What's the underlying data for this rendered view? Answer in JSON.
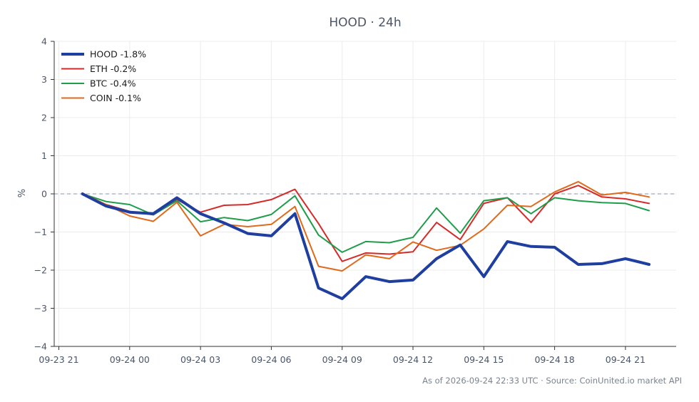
{
  "chart_data": {
    "type": "line",
    "title": "HOOD · 24h",
    "ylabel": "%",
    "xlabel": "",
    "ylim": [
      -4,
      4
    ],
    "yticks": [
      -4,
      -3,
      -2,
      -1,
      0,
      1,
      2,
      3,
      4
    ],
    "ytick_labels": [
      "−4",
      "−3",
      "−2",
      "−1",
      "0",
      "1",
      "2",
      "3",
      "4"
    ],
    "xtick_labels": [
      "09-23 21",
      "09-24 00",
      "09-24 03",
      "09-24 06",
      "09-24 09",
      "09-24 12",
      "09-24 15",
      "09-24 18",
      "09-24 21"
    ],
    "x": [
      "09-23 22",
      "09-23 23",
      "09-24 00",
      "09-24 01",
      "09-24 02",
      "09-24 03",
      "09-24 04",
      "09-24 05",
      "09-24 06",
      "09-24 07",
      "09-24 08",
      "09-24 09",
      "09-24 10",
      "09-24 11",
      "09-24 12",
      "09-24 13",
      "09-24 14",
      "09-24 15",
      "09-24 16",
      "09-24 17",
      "09-24 18",
      "09-24 19",
      "09-24 20",
      "09-24 21",
      "09-24 22"
    ],
    "reference_line": 0,
    "grid": true,
    "legend_position": "top-left",
    "series": [
      {
        "name": "HOOD -1.8%",
        "color": "#1f3fa0",
        "width": 4,
        "values": [
          0.0,
          -0.32,
          -0.48,
          -0.52,
          -0.1,
          -0.52,
          -0.76,
          -1.04,
          -1.1,
          -0.52,
          -2.47,
          -2.75,
          -2.17,
          -2.3,
          -2.26,
          -1.7,
          -1.34,
          -2.17,
          -1.25,
          -1.38,
          -1.4,
          -1.85,
          -1.83,
          -1.7,
          -1.85
        ]
      },
      {
        "name": "ETH -0.2%",
        "color": "#d62b2b",
        "width": 2,
        "values": [
          0.0,
          -0.28,
          -0.46,
          -0.55,
          -0.15,
          -0.48,
          -0.3,
          -0.28,
          -0.15,
          0.12,
          -0.78,
          -1.77,
          -1.55,
          -1.58,
          -1.52,
          -0.75,
          -1.2,
          -0.25,
          -0.1,
          -0.75,
          0.0,
          0.22,
          -0.08,
          -0.13,
          -0.25
        ]
      },
      {
        "name": "BTC -0.4%",
        "color": "#1f9d4a",
        "width": 2,
        "values": [
          0.0,
          -0.2,
          -0.28,
          -0.55,
          -0.18,
          -0.73,
          -0.62,
          -0.7,
          -0.54,
          -0.05,
          -1.08,
          -1.53,
          -1.25,
          -1.28,
          -1.14,
          -0.37,
          -1.03,
          -0.18,
          -0.1,
          -0.52,
          -0.1,
          -0.18,
          -0.23,
          -0.25,
          -0.44
        ]
      },
      {
        "name": "COIN -0.1%",
        "color": "#e06a1c",
        "width": 2,
        "values": [
          0.02,
          -0.28,
          -0.58,
          -0.72,
          -0.22,
          -1.1,
          -0.8,
          -0.86,
          -0.8,
          -0.33,
          -1.9,
          -2.02,
          -1.6,
          -1.7,
          -1.26,
          -1.48,
          -1.35,
          -0.92,
          -0.3,
          -0.33,
          0.05,
          0.32,
          -0.03,
          0.04,
          -0.08
        ]
      }
    ]
  },
  "footer": "As of 2026-09-24 22:33 UTC · Source: CoinUnited.io market API"
}
